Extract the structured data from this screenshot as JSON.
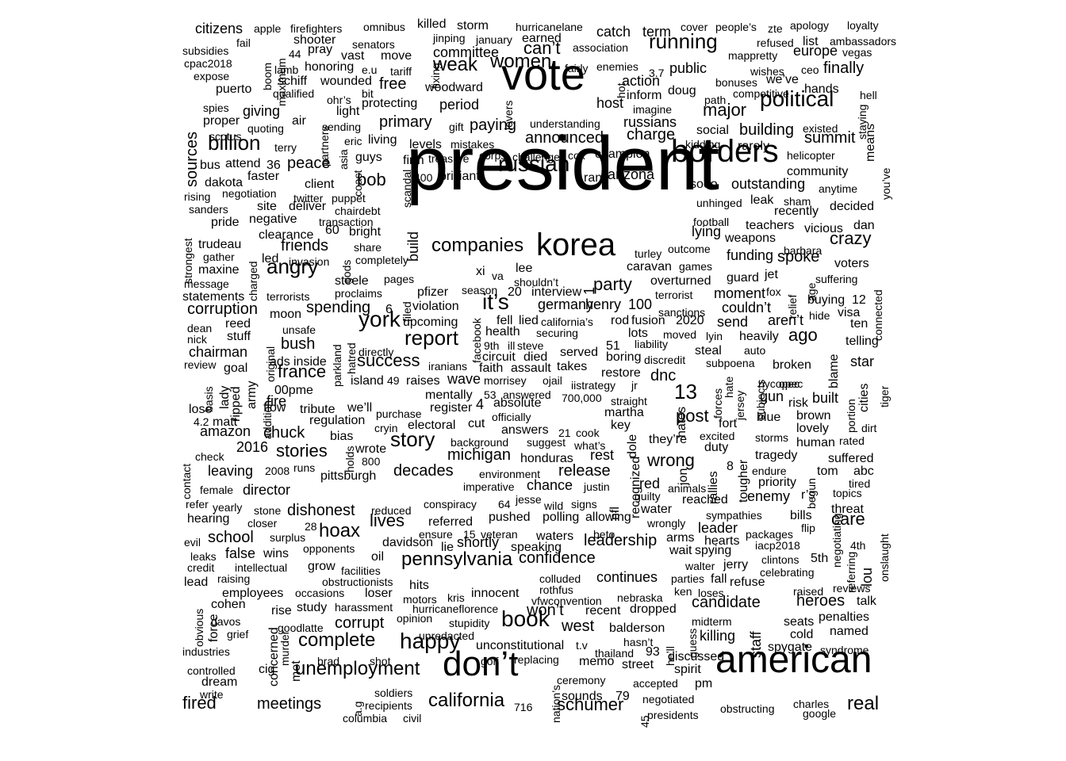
{
  "cloud": {
    "words": [
      "president",
      "vote",
      "borders",
      "american",
      "don’t",
      "korea",
      "russian",
      "political",
      "running",
      "women",
      "happy",
      "book",
      "angry",
      "report",
      "york",
      "story",
      "billion",
      "complete",
      "unemployment",
      "weak",
      "companies",
      "it’s",
      "california",
      "pennsylvania",
      "real",
      "schumer",
      "wrong",
      "meetings",
      "fired",
      "hoax",
      "dishonest",
      "decades",
      "stories",
      "party",
      "chuck",
      "friends",
      "corruption",
      "spending",
      "france",
      "bush",
      "success",
      "confidence",
      "release",
      "charge",
      "announced",
      "primary",
      "paying",
      "major",
      "summit",
      "building",
      "finally",
      "europe",
      "crazy",
      "spoke",
      "care",
      "heroes",
      "candidate",
      "leadership",
      "continues",
      "michigan",
      "won’t",
      "post",
      "13",
      "dnc",
      "west",
      "corrupt",
      "school",
      "lives",
      "amazon",
      "2016",
      "director",
      "peace",
      "bob",
      "free",
      "committee",
      "can’t",
      "term",
      "catch",
      "action",
      "public",
      "russians",
      "champion",
      "arizona",
      "outstanding",
      "community",
      "decided",
      "dan",
      "voters",
      "couldn’t",
      "aren’t",
      "ago",
      "built",
      "brown",
      "killing",
      "staff",
      "talk",
      "named",
      "reviews",
      "real estate",
      "leaving",
      "matt",
      "fire",
      "sources",
      "giving",
      "citizens",
      "apple",
      "firefighters",
      "omnibus",
      "killed",
      "storm",
      "hurricanelane",
      "cover",
      "people’s",
      "zte",
      "apology",
      "loyalty",
      "ambassadors",
      "vegas",
      "list",
      "refused",
      "earned",
      "january",
      "jinping",
      "association",
      "mappretty",
      "wishes",
      "ceo",
      "hell",
      "doug",
      "3.7",
      "enemies",
      "fairly",
      "move",
      "tariff",
      "woodward",
      "period",
      "host",
      "inform",
      "imagine",
      "understanding",
      "mistakes",
      "gift",
      "sending",
      "quoting",
      "air",
      "eric",
      "living",
      "levels",
      "treasure",
      "corps",
      "challenge",
      "cox",
      "social",
      "kidding",
      "rarely",
      "helicopter",
      "existed",
      "anytime",
      "sooo",
      "unhinged",
      "leak",
      "sham",
      "recently",
      "teachers",
      "vicious",
      "football",
      "lying",
      "weapons",
      "funding",
      "barbara",
      "outcome",
      "games",
      "caravan",
      "turley",
      "lee",
      "shouldn’t",
      "interview",
      "germany",
      "henry",
      "100",
      "fusion",
      "sanctions",
      "lots",
      "moved",
      "2020",
      "lyin",
      "send",
      "heavily",
      "telling",
      "ten",
      "visa",
      "hide",
      "buying",
      "12",
      "connected",
      "suffering",
      "fox",
      "relief",
      "jet",
      "age",
      "moment",
      "terrorist",
      "overturned",
      "guard",
      "rod",
      "securing",
      "health",
      "steve",
      "died",
      "takes",
      "served",
      "boring",
      "liability",
      "discredit",
      "steal",
      "subpoena",
      "auto",
      "broken",
      "star",
      "cities",
      "tiger",
      "opec",
      "nycopec",
      "blame",
      "portion",
      "risk",
      "gun",
      "blue",
      "lovely",
      "human",
      "rated",
      "dirt",
      "storms",
      "tragedy",
      "endure",
      "suffered",
      "abc",
      "tom",
      "tired",
      "priority",
      "topics",
      "threat",
      "flip",
      "bills",
      "packages",
      "sympathies",
      "animals",
      "guilty",
      "reached",
      "water",
      "wrongly",
      "leader",
      "hearts",
      "arms",
      "wait",
      "spying",
      "jerry",
      "walter",
      "parties",
      "fall",
      "refuse",
      "clintons",
      "5th",
      "4th",
      "iacp2018",
      "celebrating",
      "raised",
      "onslaught",
      "lou",
      "referring",
      "negotiating",
      "penalties",
      "seats",
      "cold",
      "spygate",
      "syndrome",
      "midterm",
      "hasn’t",
      "93",
      "discussed",
      "spirit",
      "pm",
      "accepted",
      "negotiated",
      "presidents",
      "obstructing",
      "charles",
      "google",
      "ceremony",
      "sounds",
      "79",
      "45",
      "vfwconvention",
      "motors",
      "kris",
      "loser",
      "hits",
      "innocent",
      "colluded",
      "rothfus",
      "nebraska",
      "ken",
      "loses",
      "dropped",
      "recent",
      "balderson",
      "thailand",
      "memo",
      "street",
      "he’ll",
      "guess",
      "t.v",
      "unconstitutional",
      "replacing",
      "golf",
      "shot",
      "brad",
      "cig",
      "murder",
      "concerned",
      "met",
      "soldiers",
      "recipients",
      "columbia",
      "civil",
      "716",
      "nation’s",
      "a.g",
      "write",
      "dream",
      "controlled",
      "industries",
      "davos",
      "cohen",
      "grief",
      "goodlatte",
      "study",
      "harassment",
      "hurricaneflorence",
      "opinion",
      "stupidity",
      "unredacted",
      "obvious",
      "force",
      "employees",
      "rise",
      "lead",
      "raising",
      "intellectual",
      "credit",
      "evil",
      "leaks",
      "false",
      "wins",
      "surplus",
      "opponents",
      "facilities",
      "oil",
      "obstructionists",
      "occasions",
      "grow",
      "davidson",
      "lie",
      "shortly",
      "veteran",
      "speaking",
      "waters",
      "beto",
      "closer",
      "28",
      "reduced",
      "ensure",
      "15",
      "referred",
      "conspiracy",
      "pushed",
      "polling",
      "allowing",
      "signs",
      "wild",
      "jesse",
      "64",
      "imperative",
      "environment",
      "justin",
      "honduras",
      "chance",
      "rest",
      "red",
      "recognized",
      "dole",
      "nfl",
      "they’re",
      "duty",
      "excited",
      "fort",
      "jon",
      "rallies",
      "tougher",
      "8",
      "begun",
      "enemy",
      "r’s",
      "stone",
      "yearly",
      "female",
      "refer",
      "contact",
      "check",
      "hearing",
      "2008",
      "runs",
      "800",
      "pittsburgh",
      "wrote",
      "bias",
      "holds",
      "background",
      "suggest",
      "what’s",
      "21",
      "cook",
      "key",
      "answers",
      "cryin",
      "electoral",
      "purchase",
      "we’ll",
      "tribute",
      "regulation",
      "flow",
      "addition",
      "army",
      "lady",
      "lose",
      "4.2",
      "basis",
      "ripped",
      "goal",
      "review",
      "00pme",
      "island",
      "49",
      "raises",
      "wave",
      "morrisey",
      "ojail",
      "iistrategy",
      "jr",
      "restore",
      "53",
      "answered",
      "700,000",
      "straight",
      "hates",
      "absolute",
      "4",
      "mentally",
      "register",
      "officially",
      "cut",
      "martha",
      "forces",
      "hate",
      "jersey",
      "subjects",
      "ads",
      "inside",
      "directly",
      "iranians",
      "assault",
      "faith",
      "circuit",
      "9th",
      "ill",
      "fell",
      "lied",
      "california’s",
      "51",
      "restore",
      "original",
      "chairman",
      "stuff",
      "reed",
      "dean",
      "nick",
      "unsafe",
      "moon",
      "terrorists",
      "proclaims",
      "filed",
      "violation",
      "pfizer",
      "upcoming",
      "facebook",
      "season",
      "20",
      "parkland",
      "hatred",
      "6",
      "statements",
      "message",
      "maxine",
      "gather",
      "trudeau",
      "charged",
      "led",
      "invasion",
      "gods",
      "share",
      "completely",
      "steele",
      "pages",
      "xi",
      "va",
      "1",
      "strongest",
      "pride",
      "sanders",
      "rising",
      "dakota",
      "negotiation",
      "site",
      "deliver",
      "negative",
      "clearance",
      "60",
      "transaction",
      "bright",
      "chairdebt",
      "puppet",
      "twitter",
      "client",
      "400",
      "brilliant",
      "scandal",
      "build",
      "firm",
      "faster",
      "36",
      "attend",
      "bus",
      "terry",
      "asia",
      "coast",
      "guys",
      "protecting",
      "light",
      "ohr’s",
      "wounded",
      "bit",
      "scotus",
      "proper",
      "spies",
      "qualified",
      "schiff",
      "puerto",
      "honoring",
      "expose",
      "lamb",
      "cpac2018",
      "subsidies",
      "boom",
      "maximum",
      "shooter",
      "senators",
      "fail",
      "44",
      "pray",
      "vast",
      "e.u",
      "fixing",
      "lovers",
      "hot",
      "path",
      "bonuses",
      "competitive",
      "we’ve",
      "hands",
      "staying",
      "means",
      "you’ve",
      "ran",
      "partners",
      "fail"
    ]
  }
}
